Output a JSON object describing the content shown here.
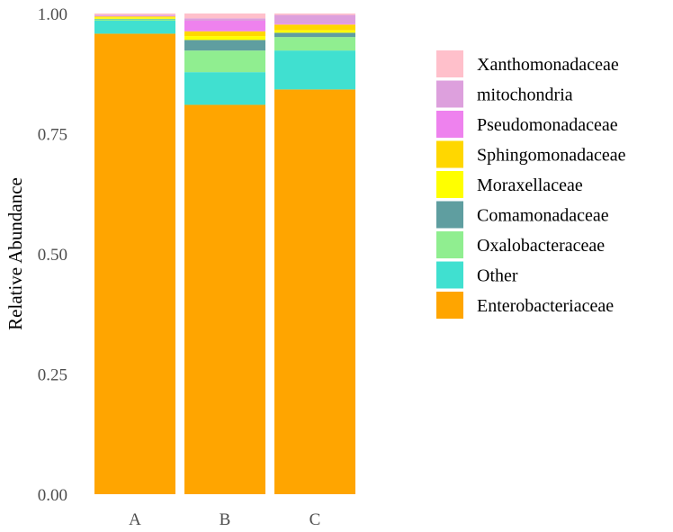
{
  "chart_data": {
    "type": "bar",
    "stacked": true,
    "title": "",
    "xlabel": "",
    "ylabel": "Relative  Abundance",
    "ylim": [
      0,
      1
    ],
    "yticks": [
      "0.00",
      "0.25",
      "0.50",
      "0.75",
      "1.00"
    ],
    "grid": false,
    "legend_position": "right",
    "categories": [
      "A",
      "B",
      "C"
    ],
    "series": [
      {
        "name": "Enterobacteriaceae",
        "color": "#FFA500",
        "values": [
          0.958,
          0.81,
          0.842
        ]
      },
      {
        "name": "Other",
        "color": "#40E0D0",
        "values": [
          0.027,
          0.068,
          0.081
        ]
      },
      {
        "name": "Oxalobacteraceae",
        "color": "#90EE90",
        "values": [
          0.003,
          0.045,
          0.028
        ]
      },
      {
        "name": "Comamonadaceae",
        "color": "#5F9EA0",
        "values": [
          0.001,
          0.022,
          0.009
        ]
      },
      {
        "name": "Moraxellaceae",
        "color": "#FFFF00",
        "values": [
          0.003,
          0.008,
          0.005
        ]
      },
      {
        "name": "Sphingomonadaceae",
        "color": "#FFD700",
        "values": [
          0.002,
          0.01,
          0.012
        ]
      },
      {
        "name": "Pseudomonadaceae",
        "color": "#EE82EE",
        "values": [
          0.001,
          0.022,
          0.002
        ]
      },
      {
        "name": "mitochondria",
        "color": "#DDA0DD",
        "values": [
          0.002,
          0.005,
          0.018
        ]
      },
      {
        "name": "Xanthomonadaceae",
        "color": "#FFC0CB",
        "values": [
          0.003,
          0.01,
          0.003
        ]
      }
    ]
  }
}
